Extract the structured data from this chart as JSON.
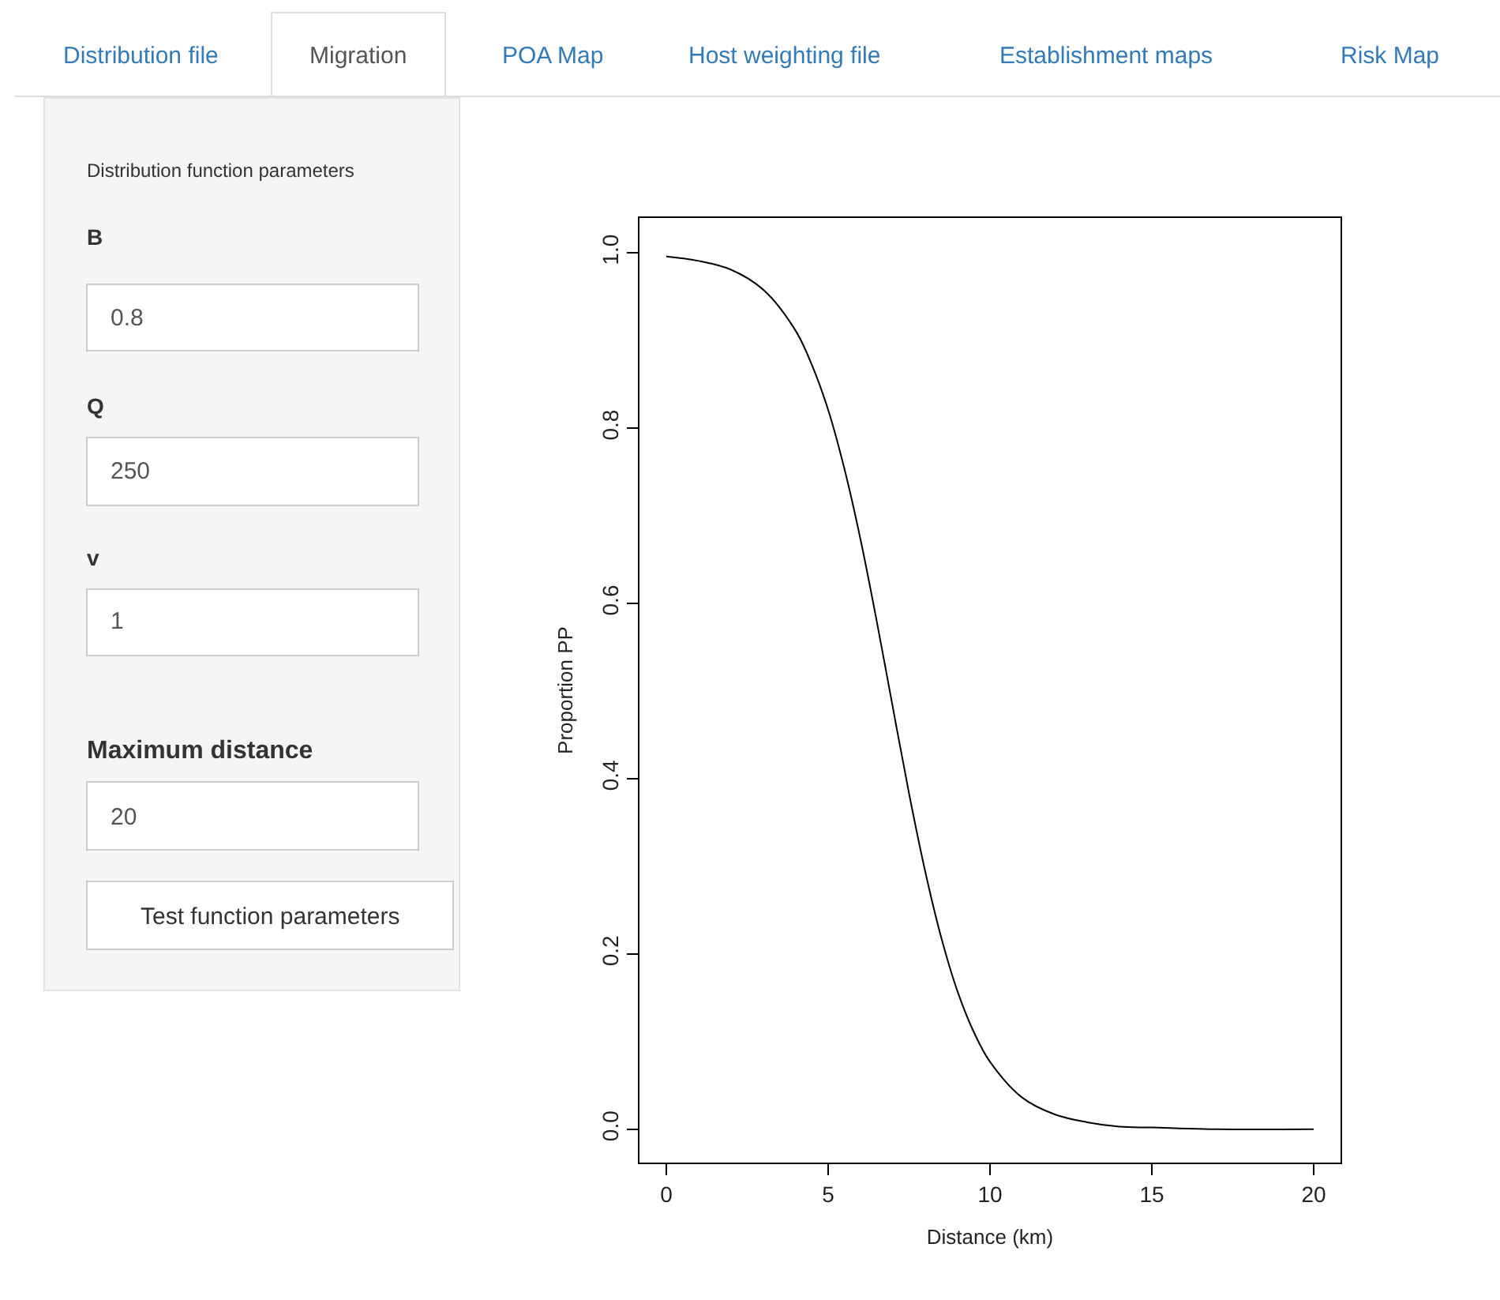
{
  "chart_data": [
    {
      "type": "other",
      "annotations": [
        "Distribution file",
        "Migration",
        "POA Map",
        "Host weighting file",
        "Establishment maps",
        "Risk Map",
        "Distribution function parameters",
        "B",
        "0.8",
        "Q",
        "250",
        "v",
        "1",
        "Maximum distance",
        "20",
        "Test function parameters"
      ]
    },
    {
      "type": "line",
      "xlabel": "Distance (km)",
      "ylabel": "Proportion PP",
      "color": "#000000",
      "x": [
        0,
        1,
        2,
        3,
        4,
        4.5,
        5,
        5.5,
        6,
        6.5,
        7,
        7.5,
        8,
        8.5,
        9,
        9.5,
        10,
        11,
        12,
        13,
        14,
        15,
        17,
        20
      ],
      "values": [
        0.996,
        0.991,
        0.981,
        0.958,
        0.911,
        0.872,
        0.821,
        0.754,
        0.673,
        0.58,
        0.481,
        0.383,
        0.294,
        0.218,
        0.157,
        0.111,
        0.077,
        0.036,
        0.017,
        0.008,
        0.003,
        0.002,
        0.0,
        0.0
      ],
      "xlim": [
        -0.83,
        20.83
      ],
      "ylim": [
        -0.038,
        1.04
      ],
      "xticks": [
        0,
        5,
        10,
        15,
        20
      ],
      "yticks": [
        {
          "value": 0,
          "label": "0.0"
        },
        {
          "value": 0.2,
          "label": "0.2"
        },
        {
          "value": 0.4,
          "label": "0.4"
        },
        {
          "value": 0.6,
          "label": "0.6"
        },
        {
          "value": 0.8,
          "label": "0.8"
        },
        {
          "value": 1,
          "label": "1.0"
        }
      ]
    }
  ]
}
